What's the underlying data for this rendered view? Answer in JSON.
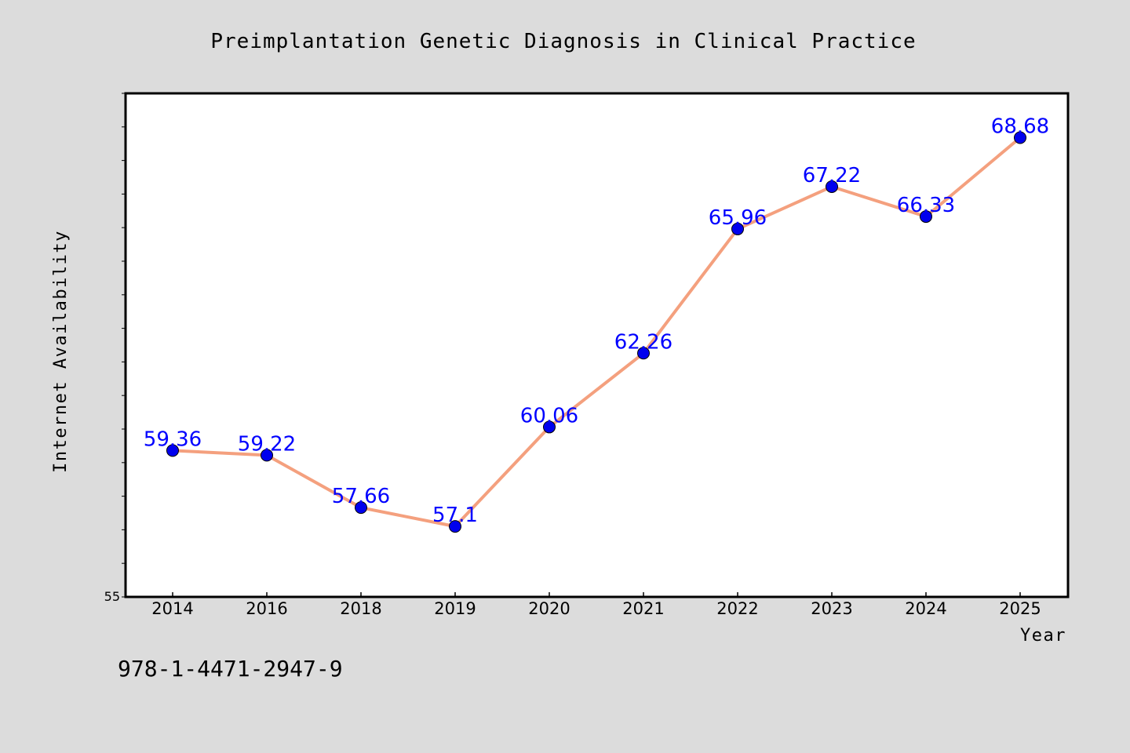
{
  "chart_data": {
    "type": "line",
    "title": "Preimplantation Genetic Diagnosis in Clinical Practice",
    "xlabel": "Year",
    "ylabel": "Internet Availability",
    "categories": [
      "2014",
      "2016",
      "2018",
      "2019",
      "2020",
      "2021",
      "2022",
      "2023",
      "2024",
      "2025"
    ],
    "values": [
      59.36,
      59.22,
      57.66,
      57.1,
      60.06,
      62.26,
      65.96,
      67.22,
      66.33,
      68.68
    ],
    "data_labels": [
      "59.36",
      "59.22",
      "57.66",
      "57.1",
      "60.06",
      "62.26",
      "65.96",
      "67.22",
      "66.33",
      "68.68"
    ],
    "ylim": [
      55,
      70
    ],
    "y_tick_labels": [
      "55"
    ],
    "grid": false,
    "line_color": "#f4a07e",
    "marker_color": "#0000ee",
    "label_color": "#0000ff"
  },
  "footer": {
    "code": "978-1-4471-2947-9"
  }
}
